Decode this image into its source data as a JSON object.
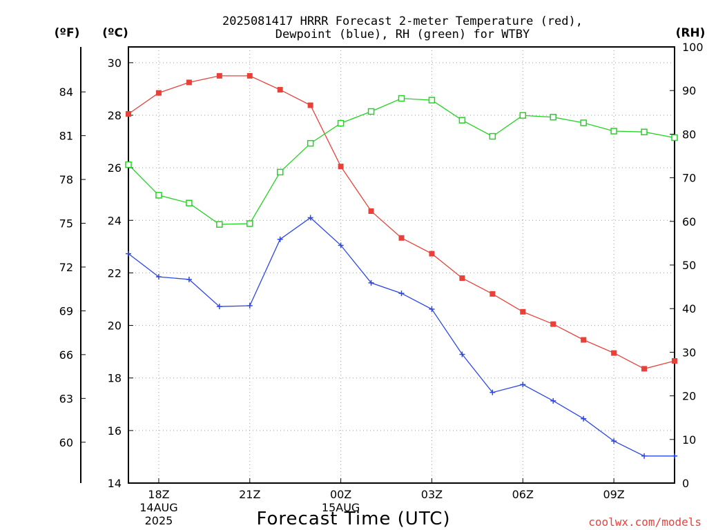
{
  "title_line1": "2025081417 HRRR Forecast 2-meter Temperature (red),",
  "title_line2": "Dewpoint (blue), RH (green) for WTBY",
  "unit_f": "(ºF)",
  "unit_c": "(ºC)",
  "unit_rh": "(RH)",
  "credit": "coolwx.com/models",
  "colors": {
    "temperature": "#e8413a",
    "dewpoint": "#2b46e8",
    "rh": "#22d422"
  },
  "chart_data": {
    "type": "line",
    "xlabel": "Forecast Time (UTC)",
    "x": [
      "17Z",
      "18Z",
      "19Z",
      "20Z",
      "21Z",
      "22Z",
      "23Z",
      "00Z",
      "01Z",
      "02Z",
      "03Z",
      "04Z",
      "05Z",
      "06Z",
      "07Z",
      "08Z",
      "09Z",
      "10Z",
      "11Z"
    ],
    "x_ticks": [
      {
        "label": "18Z",
        "date": "14AUG",
        "year": "2025"
      },
      {
        "label": "21Z"
      },
      {
        "label": "00Z",
        "date": "15AUG"
      },
      {
        "label": "03Z"
      },
      {
        "label": "06Z"
      },
      {
        "label": "09Z"
      }
    ],
    "y_left_c": {
      "ticks": [
        14,
        16,
        18,
        20,
        22,
        24,
        26,
        28,
        30
      ],
      "ylim": [
        14,
        30.6
      ]
    },
    "y_left_f": {
      "ticks": [
        60,
        63,
        66,
        69,
        72,
        75,
        78,
        81,
        84
      ]
    },
    "y_right_rh": {
      "ticks": [
        0,
        10,
        20,
        30,
        40,
        50,
        60,
        70,
        80,
        90,
        100
      ],
      "ylim": [
        0,
        100
      ]
    },
    "grid": true,
    "series": [
      {
        "name": "Temperature",
        "axis": "c",
        "color": "#e8413a",
        "marker": "filled-square",
        "values": [
          28.05,
          28.85,
          29.25,
          29.5,
          29.5,
          28.97,
          28.38,
          26.05,
          24.35,
          23.33,
          22.73,
          21.8,
          21.2,
          20.52,
          20.05,
          19.45,
          18.95,
          18.35,
          18.65
        ]
      },
      {
        "name": "Dewpoint",
        "axis": "c",
        "color": "#2b46e8",
        "marker": "plus",
        "values": [
          22.73,
          21.85,
          21.75,
          20.72,
          20.75,
          23.28,
          24.1,
          23.05,
          21.62,
          21.22,
          20.62,
          18.9,
          17.45,
          17.75,
          17.13,
          16.45,
          15.6,
          15.03,
          15.03
        ]
      },
      {
        "name": "RH",
        "axis": "rh",
        "color": "#22d422",
        "marker": "open-square",
        "values": [
          73,
          66,
          64.2,
          59.3,
          59.5,
          71.3,
          77.9,
          82.5,
          85.2,
          88.2,
          87.8,
          83.2,
          79.5,
          84.3,
          83.9,
          82.6,
          80.7,
          80.5,
          79.2
        ]
      }
    ]
  }
}
